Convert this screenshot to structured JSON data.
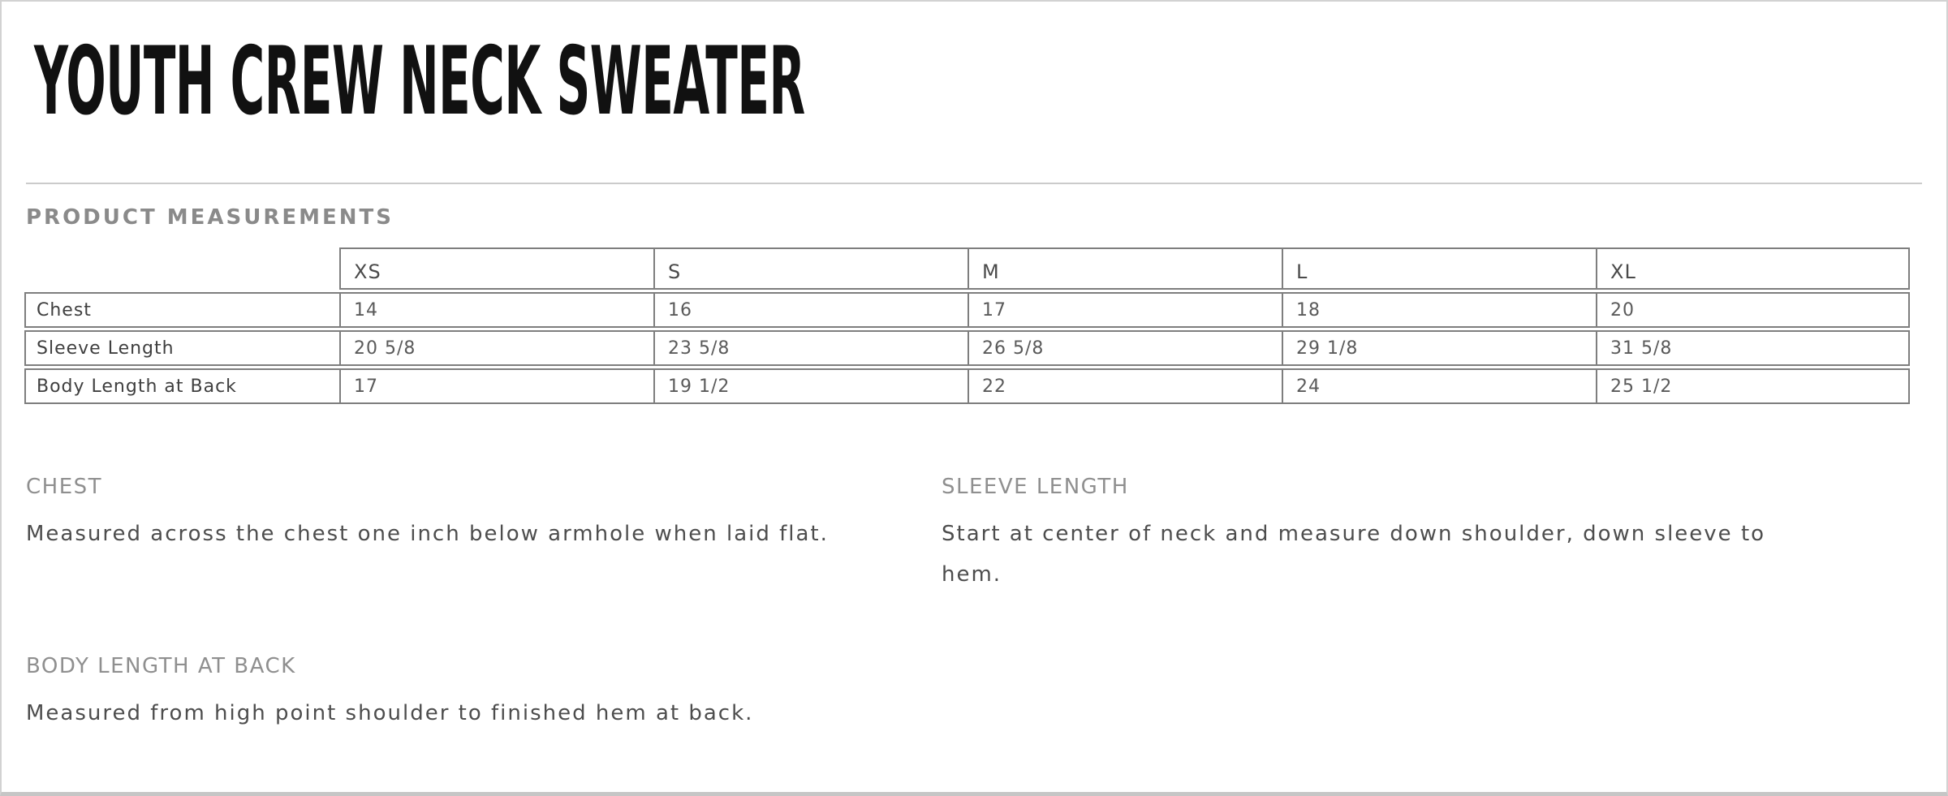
{
  "page": {
    "title": "YOUTH CREW NECK SWEATER"
  },
  "measurements": {
    "heading": "PRODUCT MEASUREMENTS",
    "sizes": [
      "XS",
      "S",
      "M",
      "L",
      "XL"
    ],
    "rows": [
      {
        "label": "Chest",
        "values": [
          "14",
          "16",
          "17",
          "18",
          "20"
        ]
      },
      {
        "label": "Sleeve Length",
        "values": [
          "20 5/8",
          "23 5/8",
          "26 5/8",
          "29 1/8",
          "31 5/8"
        ]
      },
      {
        "label": "Body Length at Back",
        "values": [
          "17",
          "19 1/2",
          "22",
          "24",
          "25 1/2"
        ]
      }
    ]
  },
  "descriptions": [
    {
      "heading": "CHEST",
      "text": "Measured across the chest one inch below armhole when laid flat."
    },
    {
      "heading": "SLEEVE LENGTH",
      "text": "Start at center of neck and measure down shoulder, down sleeve to hem."
    },
    {
      "heading": "BODY LENGTH AT BACK",
      "text": "Measured from high point shoulder to finished hem at back."
    }
  ],
  "colors": {
    "page-border": "#d2d2d2",
    "page-border-bottom": "#c6c6c6",
    "title-color": "#111111",
    "divider": "#cbcbcb",
    "section-heading": "#8a8a8a",
    "table-border": "#7e7e7e",
    "table-header-text": "#4a4a4a",
    "table-label-text": "#3f3f3f",
    "table-value-text": "#5a5a5a",
    "desc-heading": "#8f8f8f",
    "desc-text": "#4d4d4d"
  }
}
